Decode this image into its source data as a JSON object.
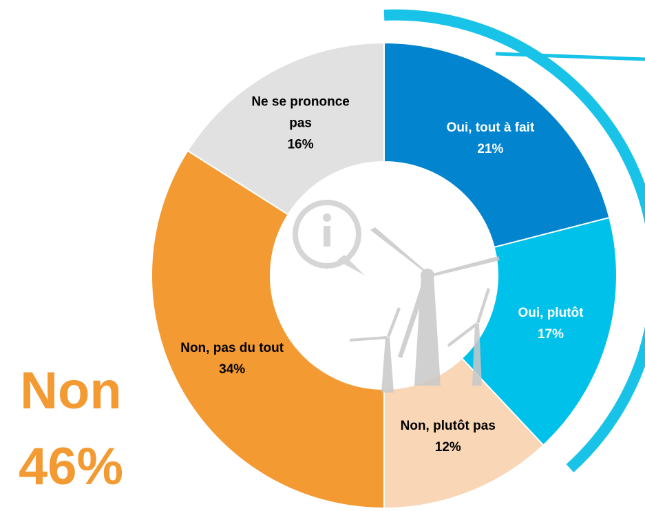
{
  "chart_data": {
    "type": "donut",
    "categories": [
      "Oui, tout à fait",
      "Oui, plutôt",
      "Non, plutôt pas",
      "Non, pas du tout",
      "Ne se prononce pas"
    ],
    "values": [
      21,
      17,
      12,
      34,
      16
    ],
    "value_labels": [
      "21%",
      "17%",
      "12%",
      "34%",
      "16%"
    ],
    "colors": [
      "#0284cf",
      "#00c1e9",
      "#f9d6b6",
      "#f39a33",
      "#e1e1e1"
    ],
    "label_colors": [
      "#ffffff",
      "#ffffff",
      "#000000",
      "#000000",
      "#000000"
    ],
    "annotation": [
      "Non",
      "46%"
    ]
  }
}
